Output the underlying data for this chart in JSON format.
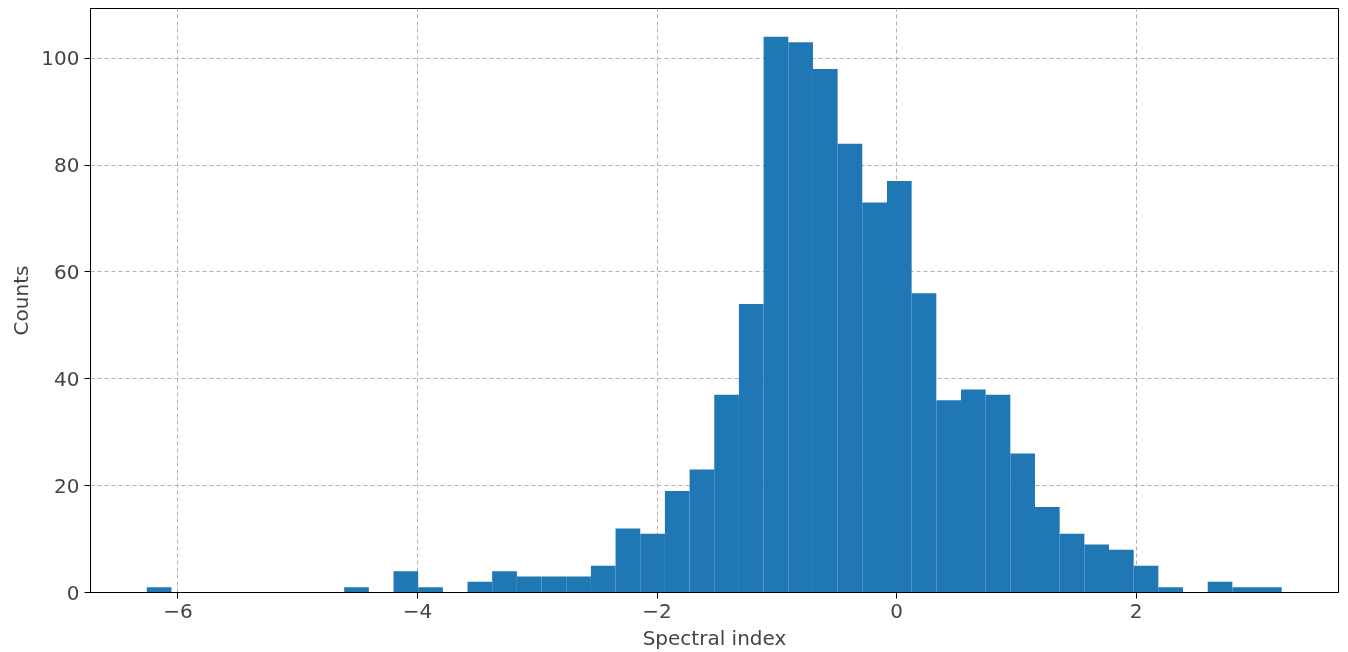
{
  "chart_data": {
    "type": "histogram",
    "xlabel": "Spectral index",
    "ylabel": "Counts",
    "color": "#1f77b4",
    "bins": [
      -6.26,
      -6.054,
      -5.848,
      -5.642,
      -5.436,
      -5.23,
      -5.024,
      -4.818,
      -4.612,
      -4.406,
      -4.2,
      -3.994,
      -3.788,
      -3.582,
      -3.376,
      -3.17,
      -2.964,
      -2.758,
      -2.552,
      -2.346,
      -2.14,
      -1.934,
      -1.728,
      -1.522,
      -1.316,
      -1.11,
      -0.904,
      -0.698,
      -0.492,
      -0.286,
      -0.08,
      0.126,
      0.332,
      0.538,
      0.744,
      0.95,
      1.156,
      1.362,
      1.568,
      1.774,
      1.98,
      2.186,
      2.392,
      2.598,
      2.804,
      3.01,
      3.216
    ],
    "values": [
      1,
      0,
      0,
      0,
      0,
      0,
      0,
      0,
      1,
      0,
      4,
      1,
      0,
      2,
      4,
      3,
      3,
      3,
      5,
      12,
      11,
      19,
      23,
      37,
      54,
      104,
      103,
      98,
      84,
      73,
      77,
      56,
      36,
      38,
      37,
      26,
      16,
      11,
      9,
      8,
      5,
      1,
      0,
      2,
      1,
      1
    ],
    "xlim": [
      -6.73,
      3.69
    ],
    "ylim": [
      0,
      109.3
    ],
    "xticks": [
      {
        "value": -6,
        "label": "−6"
      },
      {
        "value": -4,
        "label": "−4"
      },
      {
        "value": -2,
        "label": "−2"
      },
      0,
      2
    ],
    "yticks": [
      0,
      20,
      40,
      60,
      80,
      100
    ],
    "grid": true
  }
}
